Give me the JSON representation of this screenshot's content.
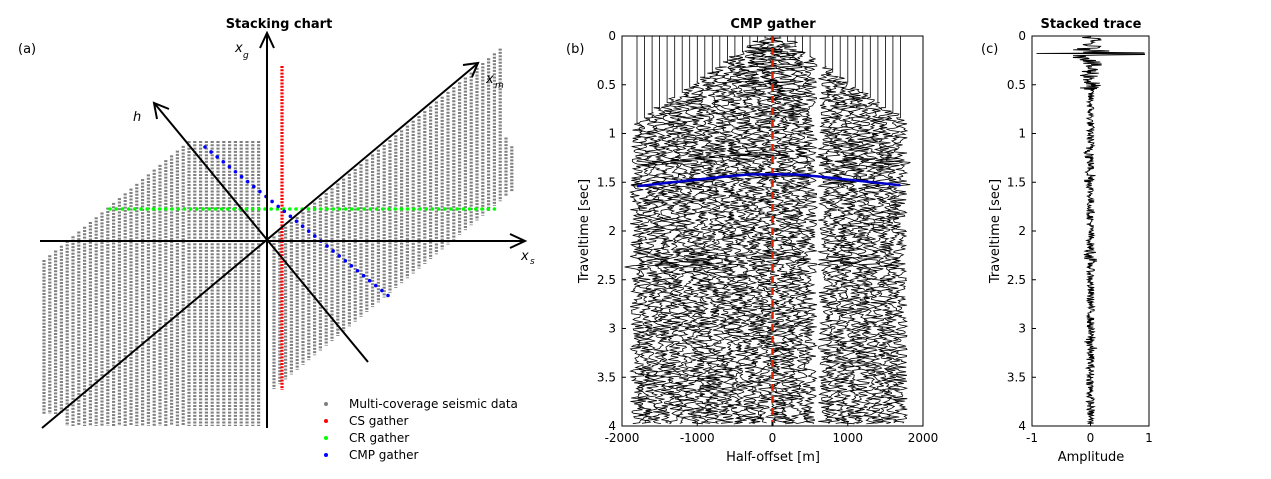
{
  "figure": {
    "panels": [
      {
        "letter": "(a)",
        "title": "Stacking chart"
      },
      {
        "letter": "(b)",
        "title": "CMP gather"
      },
      {
        "letter": "(c)",
        "title": "Stacked trace"
      }
    ]
  },
  "chart_data": [
    {
      "type": "scatter",
      "title": "Stacking chart",
      "axes": [
        {
          "symbol": "x",
          "subscript": "s"
        },
        {
          "symbol": "x",
          "subscript": "g"
        },
        {
          "symbol": "x",
          "subscript": "m"
        },
        {
          "symbol": "h",
          "subscript": ""
        }
      ],
      "legend": {
        "placement": "bottom-right",
        "entries": [
          {
            "label": "Multi-coverage seismic data",
            "color": "#808080"
          },
          {
            "label": "CS gather",
            "color": "#ff0000"
          },
          {
            "label": "CR gather",
            "color": "#00ff00"
          },
          {
            "label": "CMP gather",
            "color": "#0000ff"
          }
        ]
      }
    },
    {
      "type": "line",
      "title": "CMP gather",
      "xlabel": "Half-offset [m]",
      "ylabel": "Traveltime [sec]",
      "xlim": [
        -2000,
        2000
      ],
      "ylim": [
        4,
        0
      ],
      "xticks": [
        "-2000",
        "-1000",
        "0",
        "1000",
        "2000"
      ],
      "yticks": [
        "0",
        "0.5",
        "1",
        "1.5",
        "2",
        "2.5",
        "3",
        "3.5",
        "4"
      ],
      "trace_offsets_m": [
        -1800,
        -1700,
        -1600,
        -1500,
        -1400,
        -1300,
        -1200,
        -1100,
        -1000,
        -900,
        -800,
        -700,
        -600,
        -500,
        -400,
        -300,
        -200,
        -100,
        0,
        100,
        200,
        300,
        400,
        500,
        700,
        800,
        900,
        1000,
        1100,
        1200,
        1300,
        1400,
        1500,
        1600,
        1700
      ],
      "moveout_curve": {
        "color": "#0000cc",
        "x": [
          -1800,
          -1200,
          -600,
          -300,
          0,
          300,
          600,
          1200,
          1700
        ],
        "t": [
          1.54,
          1.49,
          1.44,
          1.42,
          1.42,
          1.42,
          1.44,
          1.49,
          1.53
        ]
      },
      "zero_offset_line": {
        "color": "#dd2200",
        "x": 0
      }
    },
    {
      "type": "line",
      "title": "Stacked trace",
      "xlabel": "Amplitude",
      "ylabel": "Traveltime [sec]",
      "xlim": [
        -1,
        1
      ],
      "ylim": [
        4,
        0
      ],
      "xticks": [
        "-1",
        "0",
        "1"
      ],
      "yticks": [
        "0",
        "0.5",
        "1",
        "1.5",
        "2",
        "2.5",
        "3",
        "3.5",
        "4"
      ],
      "events_sec": [
        0.18,
        1.2,
        1.45,
        2.25,
        3.15
      ]
    }
  ]
}
